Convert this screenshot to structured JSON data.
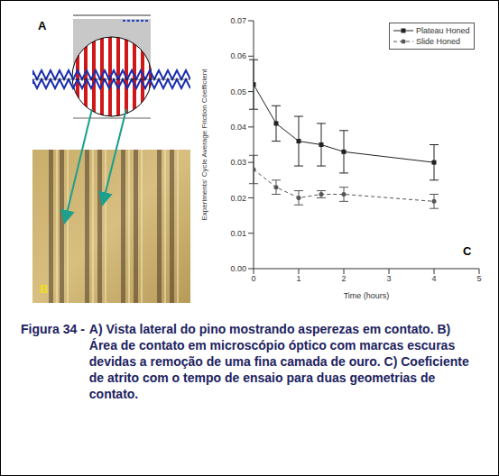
{
  "chart_data": {
    "type": "line",
    "x_label": "Time (hours)",
    "y_label": "Experiments' Cycle Average Friction Coefficient",
    "x": [
      0,
      0.5,
      1,
      1.5,
      2,
      4
    ],
    "series": [
      {
        "name": "Plateau Honed",
        "color": "#222222",
        "line_style": "solid",
        "marker": "square",
        "values": [
          0.052,
          0.041,
          0.036,
          0.035,
          0.033,
          0.03
        ],
        "errors": [
          0.007,
          0.005,
          0.007,
          0.006,
          0.006,
          0.005
        ]
      },
      {
        "name": "Slide Honed",
        "color": "#555555",
        "line_style": "dashed",
        "marker": "circle",
        "values": [
          0.028,
          0.023,
          0.02,
          0.021,
          0.021,
          0.019
        ],
        "errors": [
          0.004,
          0.002,
          0.002,
          0.001,
          0.002,
          0.002
        ]
      }
    ],
    "xlim": [
      0,
      5
    ],
    "xticks": [
      0,
      1,
      2,
      3,
      4,
      5
    ],
    "ylim": [
      0,
      0.07
    ],
    "yticks": [
      {
        "value": 0,
        "label": "0.00"
      },
      {
        "value": 0.01,
        "label": "0.01"
      },
      {
        "value": 0.02,
        "label": "0.02"
      },
      {
        "value": 0.03,
        "label": "0.03"
      },
      {
        "value": 0.04,
        "label": "0.04"
      },
      {
        "value": 0.05,
        "label": "0.05"
      },
      {
        "value": 0.06,
        "label": "0.06"
      },
      {
        "value": 0.07,
        "label": "0.07"
      }
    ],
    "legend": "upper right",
    "grid": false
  },
  "panel_labels": [
    "A",
    "B",
    "C"
  ],
  "caption": {
    "label": "Figura 34 -",
    "text": "A) Vista lateral do pino mostrando asperezas em contato. B) Área de contato em microscópio óptico com marcas escuras devidas a remoção de uma fina camada de ouro. C) Coeficiente de atrito com o tempo de ensaio para duas geometrias de contato."
  }
}
